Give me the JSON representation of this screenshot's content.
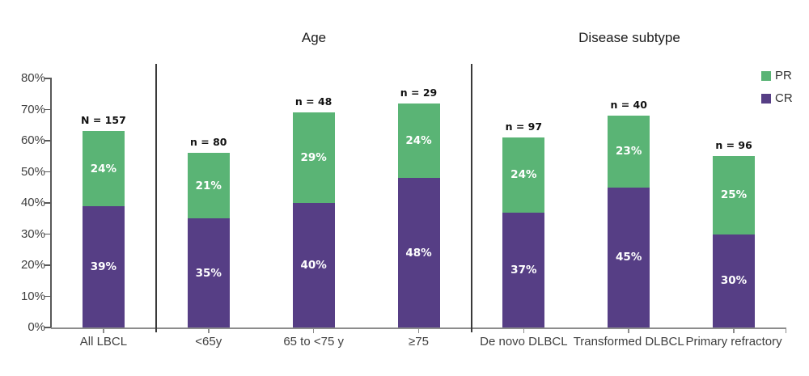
{
  "chart_data": {
    "type": "bar",
    "stacked": true,
    "section_titles": [
      "Age",
      "Disease subtype"
    ],
    "categories": [
      "All LBCL",
      "<65y",
      "65 to <75 y",
      "≥75",
      "De novo DLBCL",
      "Transformed DLBCL",
      "Primary refractory"
    ],
    "n_labels": [
      "N = 157",
      "n = 80",
      "n = 48",
      "n = 29",
      "n = 97",
      "n = 40",
      "n = 96"
    ],
    "series": [
      {
        "name": "CR",
        "color": "#563e85",
        "values": [
          39,
          35,
          40,
          48,
          37,
          45,
          30
        ],
        "labels": [
          "39%",
          "35%",
          "40%",
          "48%",
          "37%",
          "45%",
          "30%"
        ]
      },
      {
        "name": "PR",
        "color": "#5ab475",
        "values": [
          24,
          21,
          29,
          24,
          24,
          23,
          25
        ],
        "labels": [
          "24%",
          "21%",
          "29%",
          "24%",
          "24%",
          "23%",
          "25%"
        ]
      }
    ],
    "totals": [
      63,
      56,
      69,
      72,
      61,
      68,
      55
    ],
    "ylim": [
      0,
      80
    ],
    "y_ticks": [
      "0%",
      "10%",
      "20%",
      "30%",
      "40%",
      "50%",
      "60%",
      "70%",
      "80%"
    ],
    "legend": [
      "PR",
      "CR"
    ],
    "legend_position": "top-right",
    "grid": false,
    "section_boundaries_after_category": [
      0,
      3
    ]
  },
  "colors": {
    "pr_green": "#5ab475",
    "cr_purple": "#563e85",
    "y_axis": "#595959",
    "x_axis": "#8c8c8c",
    "divider": "#3a3a3a",
    "tick_label": "#3f3f3f",
    "n_label": "#111111",
    "bar_value_label": "#ffffff"
  }
}
